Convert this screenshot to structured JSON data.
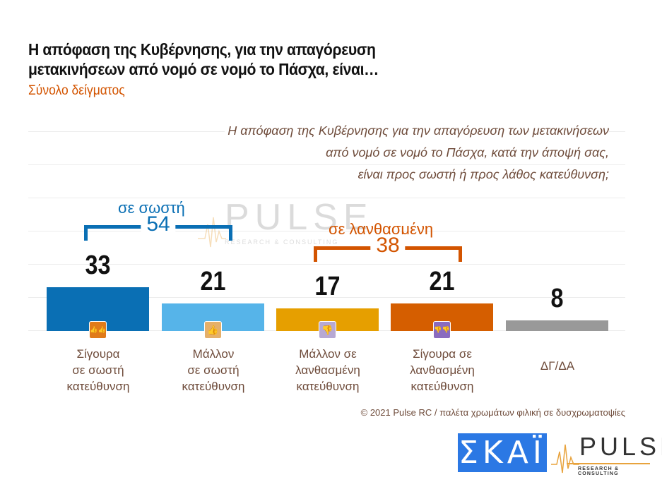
{
  "header": {
    "title_line1": "Η απόφαση της Κυβέρνησης, για την απαγόρευση",
    "title_line2": "μετακινήσεων από νομό σε νομό το Πάσχα, είναι…",
    "subtitle": "Σύνολο δείγματος"
  },
  "question": {
    "line1": "Η απόφαση της Κυβέρνησης για την απαγόρευση των μετακινήσεων",
    "line2": "από νομό σε νομό το Πάσχα, κατά την άποψή σας,",
    "line3": "είναι προς σωστή ή προς λάθος κατεύθυνση;"
  },
  "groups": {
    "positive": {
      "label": "σε σωστή",
      "value": "54",
      "color": "#0a6fb4"
    },
    "negative": {
      "label": "σε λανθασμένη",
      "value": "38",
      "color": "#d35400"
    }
  },
  "chart_data": {
    "type": "bar",
    "title": "Η απόφαση της Κυβέρνησης, για την απαγόρευση μετακινήσεων από νομό σε νομό το Πάσχα, είναι…",
    "subtitle": "Σύνολο δείγματος",
    "categories": [
      "Σίγουρα σε σωστή κατεύθυνση",
      "Μάλλον σε σωστή κατεύθυνση",
      "Μάλλον σε λανθασμένη κατεύθυνση",
      "Σίγουρα σε λανθασμένη κατεύθυνση",
      "ΔΓ/ΔΑ"
    ],
    "values": [
      33,
      21,
      17,
      21,
      8
    ],
    "colors": [
      "#0a6fb4",
      "#56b4e9",
      "#e69f00",
      "#d55e00",
      "#999999"
    ],
    "group_totals": [
      {
        "label": "σε σωστή",
        "value": 54,
        "categories": [
          0,
          1
        ]
      },
      {
        "label": "σε λανθασμένη",
        "value": 38,
        "categories": [
          2,
          3
        ]
      }
    ],
    "xlabel": "",
    "ylabel": "",
    "unit": "%",
    "ylim": [
      0,
      100
    ],
    "grid": true,
    "legend": false
  },
  "bars": [
    {
      "value": "33",
      "label_lines": [
        "Σίγουρα",
        "σε σωστή",
        "κατεύθυνση"
      ],
      "color": "#0a6fb4",
      "icon": "double-thumbs-up-icon",
      "icon_glyph": "👍👍",
      "icon_bg": "#e07b1a"
    },
    {
      "value": "21",
      "label_lines": [
        "Μάλλον",
        "σε σωστή",
        "κατεύθυνση"
      ],
      "color": "#56b4e9",
      "icon": "thumbs-up-icon",
      "icon_glyph": "👍",
      "icon_bg": "#e5b06a"
    },
    {
      "value": "17",
      "label_lines": [
        "Μάλλον σε",
        "λανθασμένη",
        "κατεύθυνση"
      ],
      "color": "#e69f00",
      "icon": "thumbs-down-icon",
      "icon_glyph": "👎",
      "icon_bg": "#b7a9d3"
    },
    {
      "value": "21",
      "label_lines": [
        "Σίγουρα σε",
        "λανθασμένη",
        "κατεύθυνση"
      ],
      "color": "#d55e00",
      "icon": "double-thumbs-down-icon",
      "icon_glyph": "👎👎",
      "icon_bg": "#8a6bbf"
    },
    {
      "value": "8",
      "label_lines": [
        "ΔΓ/ΔΑ"
      ],
      "color": "#999999",
      "icon": null,
      "icon_glyph": null,
      "icon_bg": null
    }
  ],
  "footer": {
    "note": "© 2021 Pulse RC  /  παλέτα χρωμάτων φιλική σε δυσχρωματοψίες"
  },
  "logos": {
    "skai": "ΣΚΑΪ",
    "pulse": "PULSE",
    "pulse_sub": "RESEARCH & CONSULTING"
  },
  "watermark": {
    "text": "PULSE",
    "sub": "RESEARCH & CONSULTING"
  }
}
